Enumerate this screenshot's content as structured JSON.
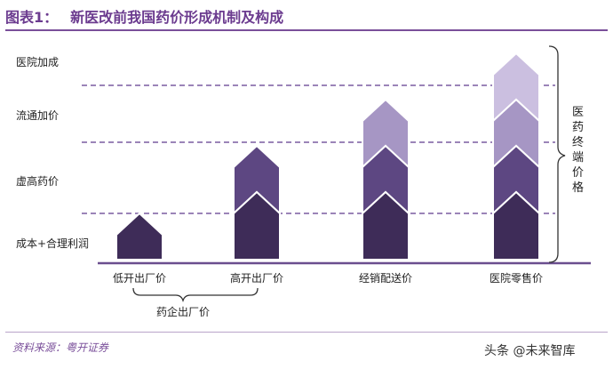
{
  "title": {
    "number": "图表1：",
    "text": "新医改前我国药价形成机制及构成"
  },
  "levels": [
    "医院加成",
    "流通加价",
    "虚高药价",
    "成本+合理利润"
  ],
  "columns": [
    {
      "label": "低开出厂价",
      "segments": 1
    },
    {
      "label": "高开出厂价",
      "segments": 2
    },
    {
      "label": "经销配送价",
      "segments": 3
    },
    {
      "label": "医院零售价",
      "segments": 4
    }
  ],
  "group_label": "药企出厂价",
  "bracket_label": "医药终端价格",
  "source": "资料来源：粤开证券",
  "watermark": "头条 @未来智库",
  "colors": {
    "title": "#6b3b8f",
    "dark": "#3e2c58",
    "medium": "#5d4782",
    "light": "#a696c4",
    "lightest": "#cbbfe0",
    "dashes": "#7a5ca0",
    "baseline": "#6b4f8f"
  }
}
